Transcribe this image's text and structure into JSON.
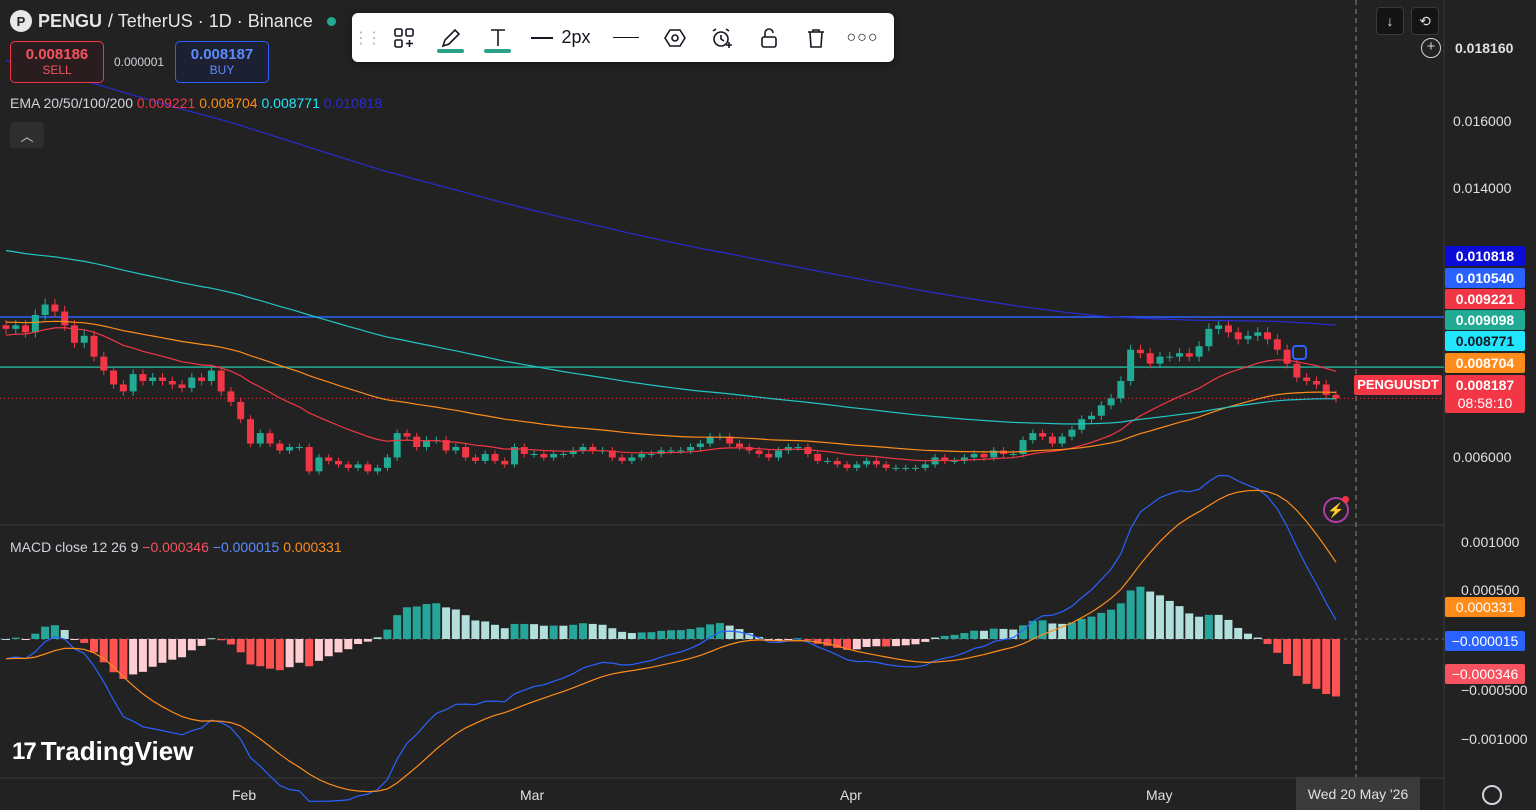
{
  "header": {
    "symbol": "PENGU",
    "pair": "/ TetherUS · 1D · Binance",
    "sell_price": "0.008186",
    "sell_label": "SELL",
    "spread": "0.000001",
    "buy_price": "0.008187",
    "buy_label": "BUY"
  },
  "toolbar": {
    "width_label": "2px",
    "icons": [
      "grip-icon",
      "add-object-icon",
      "pencil-icon",
      "text-icon",
      "line-style-icon",
      "line-icon",
      "hexagon-icon",
      "alarm-add-icon",
      "unlock-icon",
      "trash-icon",
      "more-icon"
    ]
  },
  "legend": {
    "ema_name": "EMA 20/50/100/200",
    "ema20": "0.009221",
    "ema50": "0.008704",
    "ema100": "0.008771",
    "ema200": "0.010818",
    "macd_name": "MACD close 12 26 9",
    "macd_hist": "−0.000346",
    "macd_line": "−0.000015",
    "macd_signal": "0.000331"
  },
  "price_axis": {
    "ticks": [
      "0.018160",
      "0.016000",
      "0.014000",
      "0.006000"
    ],
    "tags": [
      {
        "value": "0.010818",
        "color": "#0c0cd8"
      },
      {
        "value": "0.010540",
        "color": "#2962ff"
      },
      {
        "value": "0.009221",
        "color": "#f23645"
      },
      {
        "value": "0.009098",
        "color": "#22ab94"
      },
      {
        "value": "0.008771",
        "color": "#22e5ff"
      },
      {
        "value": "0.008704",
        "color": "#ff8c1a"
      },
      {
        "value": "0.008187",
        "color": "#f23645"
      }
    ],
    "countdown": "08:58:10",
    "symbol_badge": "PENGUUSDT"
  },
  "macd_axis": {
    "ticks": [
      "0.001000",
      "0.000500",
      "−0.000500",
      "−0.001000"
    ],
    "tags": [
      {
        "value": "0.000331",
        "color": "#ff8c1a"
      },
      {
        "value": "−0.000015",
        "color": "#2962ff"
      },
      {
        "value": "−0.000346",
        "color": "#f7525f"
      }
    ]
  },
  "time_axis": {
    "labels": [
      "Feb",
      "Mar",
      "Apr",
      "May"
    ],
    "crosshair_date": "Wed 20 May '26"
  },
  "branding": {
    "name": "TradingView"
  },
  "colors": {
    "up": "#22ab94",
    "down": "#f23645",
    "ema20": "#f23645",
    "ema50": "#ff8c1a",
    "ema100": "#22c5c5",
    "ema200": "#2a2ad0",
    "hline_blue": "#2962ff",
    "hline_teal": "#22ab94"
  },
  "chart_data": {
    "type": "candlestick",
    "ylim": [
      0.0047,
      0.0188
    ],
    "horizontal_lines": [
      0.01054,
      0.009098
    ],
    "candles_close": [
      0.0102,
      0.0103,
      0.0101,
      0.0106,
      0.0109,
      0.0107,
      0.0103,
      0.0098,
      0.01,
      0.0094,
      0.009,
      0.0086,
      0.0084,
      0.0089,
      0.0087,
      0.0088,
      0.0087,
      0.0086,
      0.0085,
      0.0088,
      0.0087,
      0.009,
      0.0084,
      0.0081,
      0.0076,
      0.0069,
      0.0072,
      0.0069,
      0.0067,
      0.0068,
      0.0068,
      0.0061,
      0.0065,
      0.0064,
      0.0063,
      0.0062,
      0.0063,
      0.0061,
      0.0062,
      0.0065,
      0.0072,
      0.0071,
      0.0068,
      0.007,
      0.007,
      0.0067,
      0.0068,
      0.0065,
      0.0064,
      0.0066,
      0.0064,
      0.0063,
      0.0068,
      0.0066,
      0.0066,
      0.0065,
      0.0066,
      0.0066,
      0.0067,
      0.0068,
      0.0067,
      0.0067,
      0.0065,
      0.0064,
      0.0065,
      0.0066,
      0.0066,
      0.0067,
      0.0067,
      0.0067,
      0.0068,
      0.0069,
      0.0071,
      0.0071,
      0.0069,
      0.0068,
      0.0067,
      0.0066,
      0.0065,
      0.0067,
      0.0068,
      0.0068,
      0.0066,
      0.0064,
      0.0064,
      0.0063,
      0.0062,
      0.0063,
      0.0064,
      0.0063,
      0.0062,
      0.0062,
      0.0062,
      0.0062,
      0.0063,
      0.0065,
      0.0064,
      0.0064,
      0.0065,
      0.0066,
      0.0065,
      0.0067,
      0.0066,
      0.0066,
      0.007,
      0.0072,
      0.0071,
      0.0069,
      0.0071,
      0.0073,
      0.0076,
      0.0077,
      0.008,
      0.0082,
      0.0087,
      0.0096,
      0.0095,
      0.0092,
      0.0094,
      0.0094,
      0.0095,
      0.0094,
      0.0097,
      0.0102,
      0.0103,
      0.0101,
      0.0099,
      0.01,
      0.0101,
      0.0099,
      0.0096,
      0.0092,
      0.0088,
      0.0087,
      0.0086,
      0.0083,
      0.0082
    ]
  }
}
